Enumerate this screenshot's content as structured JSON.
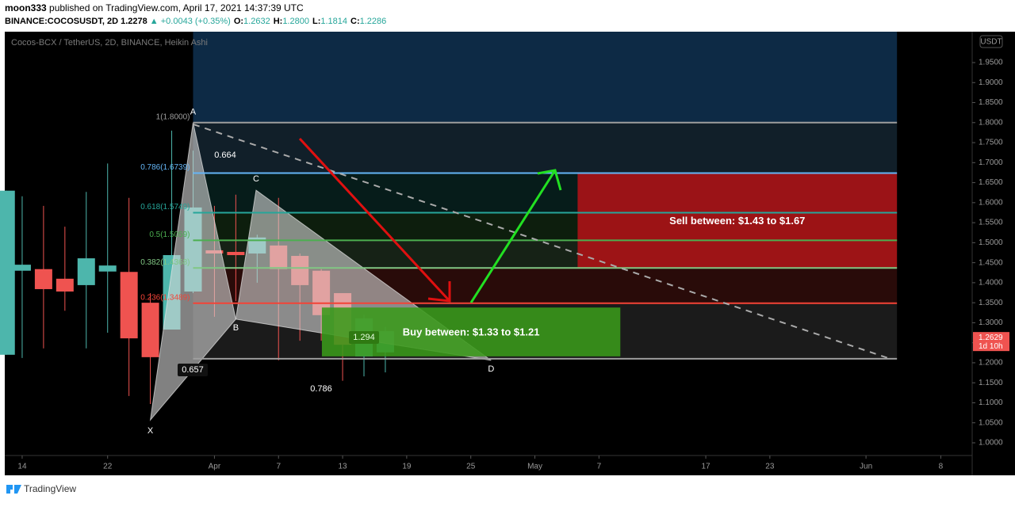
{
  "header": {
    "author": "moon333",
    "published": " published on TradingView.com, April 17, 2021 14:37:39 UTC",
    "symbol": "BINANCE:COCOSUSDT, 2D",
    "last": "1.2278",
    "change": "▲ +0.0043 (+0.35%)",
    "ohlc": [
      {
        "label": "O:",
        "value": "1.2632"
      },
      {
        "label": "H:",
        "value": "1.2800"
      },
      {
        "label": "L:",
        "value": "1.1814"
      },
      {
        "label": "C:",
        "value": "1.2286"
      }
    ]
  },
  "footer": {
    "brand": "TradingView"
  },
  "chart_data": {
    "type": "candlestick",
    "title": "Cocos-BCX / TetherUS, 2D, BINANCE, Heikin Ashi",
    "currency": "USDT",
    "x": [
      -1.5,
      0,
      2,
      4,
      6,
      8,
      10,
      12,
      14,
      16,
      18,
      20,
      22,
      24,
      26,
      28,
      30,
      32,
      34
    ],
    "open": [
      1.22,
      1.43,
      1.434,
      1.41,
      1.394,
      1.428,
      1.427,
      1.35,
      1.283,
      1.378,
      1.481,
      1.477,
      1.473,
      1.493,
      1.467,
      1.43,
      1.374,
      1.216,
      1.226
    ],
    "high": [
      1.63,
      1.616,
      1.592,
      1.54,
      1.627,
      1.698,
      1.612,
      1.374,
      1.78,
      1.73,
      1.592,
      1.62,
      1.52,
      1.612,
      1.473,
      1.434,
      1.374,
      1.32,
      1.29
    ],
    "low": [
      1.22,
      1.212,
      1.236,
      1.33,
      1.236,
      1.275,
      1.117,
      1.097,
      1.283,
      1.374,
      1.315,
      1.354,
      1.4,
      1.206,
      1.255,
      1.255,
      1.155,
      1.166,
      1.176
    ],
    "close": [
      1.63,
      1.445,
      1.384,
      1.378,
      1.461,
      1.443,
      1.261,
      1.214,
      1.469,
      1.588,
      1.473,
      1.469,
      1.513,
      1.434,
      1.394,
      1.319,
      1.245,
      1.311,
      1.279
    ],
    "up_color": "#4db6ac",
    "down_color": "#ef5350",
    "xlim": [
      -1.63,
      88.94
    ],
    "xticks": [
      {
        "value": 0,
        "label": "14"
      },
      {
        "value": 8,
        "label": "22"
      },
      {
        "value": 18,
        "label": "Apr"
      },
      {
        "value": 24,
        "label": "7"
      },
      {
        "value": 30,
        "label": "13"
      },
      {
        "value": 36,
        "label": "19"
      },
      {
        "value": 42,
        "label": "25"
      },
      {
        "value": 48,
        "label": "May"
      },
      {
        "value": 54,
        "label": "7"
      },
      {
        "value": 64,
        "label": "17"
      },
      {
        "value": 70,
        "label": "23"
      },
      {
        "value": 79,
        "label": "Jun"
      },
      {
        "value": 86,
        "label": "8"
      }
    ],
    "ylim": [
      0.9683,
      2.0272
    ],
    "yticks": [
      {
        "value": 1,
        "label": "1.0000"
      },
      {
        "value": 1.05,
        "label": "1.0500"
      },
      {
        "value": 1.1,
        "label": "1.1000"
      },
      {
        "value": 1.15,
        "label": "1.1500"
      },
      {
        "value": 1.2,
        "label": "1.2000"
      },
      {
        "value": 1.25,
        "label": "1.2500"
      },
      {
        "value": 1.3,
        "label": "1.3000"
      },
      {
        "value": 1.35,
        "label": "1.3500"
      },
      {
        "value": 1.4,
        "label": "1.4000"
      },
      {
        "value": 1.45,
        "label": "1.4500"
      },
      {
        "value": 1.5,
        "label": "1.5000"
      },
      {
        "value": 1.55,
        "label": "1.5500"
      },
      {
        "value": 1.6,
        "label": "1.6000"
      },
      {
        "value": 1.65,
        "label": "1.6500"
      },
      {
        "value": 1.7,
        "label": "1.7000"
      },
      {
        "value": 1.75,
        "label": "1.7500"
      },
      {
        "value": 1.8,
        "label": "1.8000"
      },
      {
        "value": 1.85,
        "label": "1.8500"
      },
      {
        "value": 1.9,
        "label": "1.9000"
      },
      {
        "value": 1.95,
        "label": "1.9500"
      }
    ],
    "grid": false,
    "last_price": {
      "value": 1.2629,
      "label": "1.2629",
      "countdown": "1d 10h"
    },
    "fib_levels": [
      {
        "label": "1(1.8000)",
        "value": 1.8,
        "color": "#9e9e9e"
      },
      {
        "label": "0.786(1.6739)",
        "value": 1.6739,
        "color": "#64b5f6"
      },
      {
        "label": "0.618(1.5749)",
        "value": 1.5749,
        "color": "#26a69a"
      },
      {
        "label": "0.5(1.5059)",
        "value": 1.5059,
        "color": "#4caf50"
      },
      {
        "label": "0.382(1.4368)",
        "value": 1.4368,
        "color": "#81c784"
      },
      {
        "label": "0.236(1.3489)",
        "value": 1.3489,
        "color": "#f44336"
      }
    ],
    "fib_base": {
      "value": 1.21,
      "color": "#9e9e9e"
    },
    "fib_span": [
      16,
      81.9
    ],
    "zones": [
      {
        "from": 16,
        "to": 81.9,
        "low": 1.8,
        "high": 2.0272,
        "color": "#0d2a45"
      },
      {
        "from": 28.06,
        "to": 56,
        "low": 1.216,
        "high": 1.338,
        "color": "#3a9a1a",
        "label": "Buy between: $1.33 to $1.21"
      },
      {
        "from": 52,
        "to": 81.9,
        "low": 1.436,
        "high": 1.674,
        "color": "#b01217",
        "label": "Sell between: $1.43 to $1.67"
      }
    ],
    "pattern": [
      {
        "label": "X",
        "x": 12,
        "price": 1.057
      },
      {
        "label": "A",
        "x": 16,
        "price": 1.8
      },
      {
        "label": "B",
        "x": 20,
        "price": 1.309
      },
      {
        "label": "C",
        "x": 21.9,
        "price": 1.631
      },
      {
        "label": "D",
        "x": 43.9,
        "price": 1.206
      }
    ],
    "ratios": [
      "0.664",
      "0.657",
      "0.786"
    ],
    "price_badge": "1.294"
  }
}
